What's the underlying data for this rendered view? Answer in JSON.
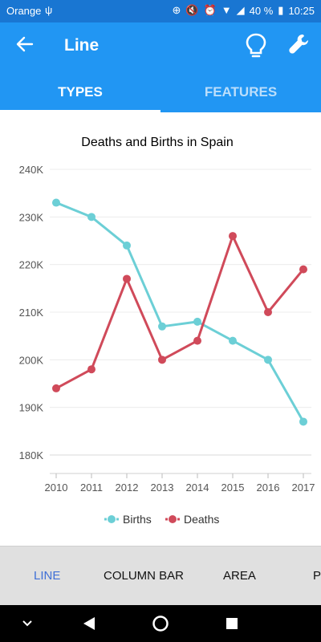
{
  "status_bar": {
    "carrier": "Orange",
    "battery": "40 %",
    "time": "10:25"
  },
  "app_bar": {
    "title": "Line",
    "back_icon": "arrow-back-icon",
    "actions": [
      "lightbulb-icon",
      "wrench-icon"
    ]
  },
  "tabs": [
    {
      "label": "TYPES",
      "active": true
    },
    {
      "label": "FEATURES",
      "active": false
    }
  ],
  "colors": {
    "primary": "#2196f3",
    "status_bar": "#1976d2",
    "births": "#6ccfd6",
    "deaths": "#d04a5a",
    "selected_bottom_tab": "#3f6fd6"
  },
  "chart_data": {
    "type": "line",
    "title": "Deaths and Births in Spain",
    "x": [
      "2010",
      "2011",
      "2012",
      "2013",
      "2014",
      "2015",
      "2016",
      "2017"
    ],
    "series": [
      {
        "name": "Births",
        "values": [
          233000,
          230000,
          224000,
          207000,
          208000,
          204000,
          200000,
          187000
        ]
      },
      {
        "name": "Deaths",
        "values": [
          194000,
          198000,
          217000,
          200000,
          204000,
          226000,
          210000,
          219000
        ]
      }
    ],
    "ylim": [
      180000,
      240000
    ],
    "yticks": [
      {
        "value": 240000,
        "label": "240K"
      },
      {
        "value": 230000,
        "label": "230K"
      },
      {
        "value": 220000,
        "label": "220K"
      },
      {
        "value": 210000,
        "label": "210K"
      },
      {
        "value": 200000,
        "label": "200K"
      },
      {
        "value": 190000,
        "label": "190K"
      },
      {
        "value": 180000,
        "label": "180K"
      }
    ],
    "grid": true,
    "legend": "bottom-center"
  },
  "bottom_tabs": [
    {
      "label": "LINE",
      "selected": true
    },
    {
      "label": "COLUMN BAR",
      "selected": false
    },
    {
      "label": "AREA",
      "selected": false
    },
    {
      "label": "P",
      "selected": false
    }
  ],
  "nav_bar": [
    "chevron-down-icon",
    "back-triangle-icon",
    "home-circle-icon",
    "recents-square-icon"
  ]
}
